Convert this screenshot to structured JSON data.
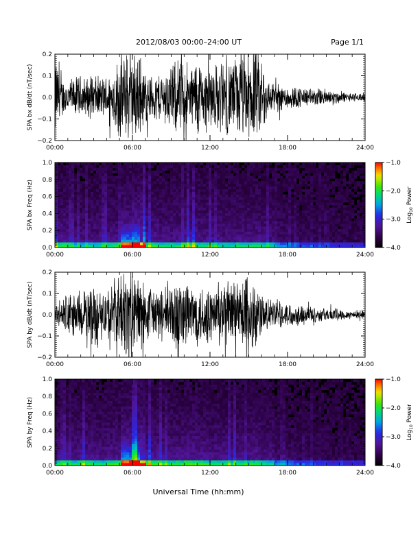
{
  "header": {
    "title": "2012/08/03  00:00–24:00 UT",
    "page": "Page 1/1"
  },
  "chart_data": [
    {
      "type": "line",
      "id": "bx-waveform",
      "ylabel": "SPA bx dB/dt (nT/sec)",
      "xlim": [
        0,
        24
      ],
      "ylim": [
        -0.2,
        0.2
      ],
      "xticks": [
        "00:00",
        "06:00",
        "12:00",
        "18:00",
        "24:00"
      ],
      "yticks": [
        "−0.2",
        "−0.1",
        "0.0",
        "0.1",
        "0.2"
      ],
      "series": [
        {
          "x": [
            0,
            0.5,
            1,
            1.5,
            2,
            2.5,
            3,
            3.5,
            4,
            4.5,
            5,
            5.5,
            6,
            6.5,
            7,
            7.5,
            8,
            8.5,
            9,
            9.5,
            10,
            10.5,
            11,
            11.5,
            12,
            12.5,
            13,
            13.5,
            14,
            14.5,
            15,
            15.5,
            16,
            16.5,
            17,
            17.5,
            18,
            18.5,
            19,
            19.5,
            20,
            20.5,
            21,
            21.5,
            22,
            22.5,
            23,
            23.5,
            24
          ],
          "amplitude": [
            0.2,
            0.09,
            0.08,
            0.09,
            0.1,
            0.09,
            0.1,
            0.09,
            0.1,
            0.12,
            0.2,
            0.2,
            0.2,
            0.2,
            0.12,
            0.1,
            0.11,
            0.12,
            0.16,
            0.16,
            0.2,
            0.13,
            0.2,
            0.14,
            0.17,
            0.15,
            0.17,
            0.17,
            0.18,
            0.2,
            0.2,
            0.2,
            0.2,
            0.08,
            0.07,
            0.06,
            0.06,
            0.05,
            0.05,
            0.04,
            0.04,
            0.04,
            0.04,
            0.03,
            0.03,
            0.02,
            0.02,
            0.02,
            0.02
          ]
        }
      ]
    },
    {
      "type": "heatmap",
      "id": "bx-spectrogram",
      "ylabel": "SPA bx Freq (Hz)",
      "xlim": [
        0,
        24
      ],
      "ylim": [
        0,
        1.0
      ],
      "xticks": [
        "00:00",
        "06:00",
        "12:00",
        "18:00",
        "24:00"
      ],
      "yticks": [
        "0.0",
        "0.2",
        "0.4",
        "0.6",
        "0.8",
        "1.0"
      ],
      "zlim": [
        -4.0,
        -1.0
      ],
      "colorbar_label": "Log",
      "colorbar_sub": "10",
      "colorbar_label_tail": " Power",
      "colorbar_ticks": [
        "−1.0",
        "−2.0",
        "−3.0",
        "−4.0"
      ],
      "hour_activity": [
        0.55,
        0.4,
        0.45,
        0.45,
        0.5,
        0.75,
        0.9,
        0.55,
        0.5,
        0.5,
        0.6,
        0.5,
        0.5,
        0.45,
        0.5,
        0.5,
        0.45,
        0.3,
        0.25,
        0.2,
        0.18,
        0.15,
        0.15,
        0.15
      ]
    },
    {
      "type": "line",
      "id": "by-waveform",
      "ylabel": "SPA by dB/dt (nT/sec)",
      "xlim": [
        0,
        24
      ],
      "ylim": [
        -0.2,
        0.2
      ],
      "xticks": [
        "00:00",
        "06:00",
        "12:00",
        "18:00",
        "24:00"
      ],
      "yticks": [
        "−0.2",
        "−0.1",
        "0.0",
        "0.1",
        "0.2"
      ],
      "series": [
        {
          "x": [
            0,
            0.5,
            1,
            1.5,
            2,
            2.5,
            3,
            3.5,
            4,
            4.5,
            5,
            5.5,
            6,
            6.5,
            7,
            7.5,
            8,
            8.5,
            9,
            9.5,
            10,
            10.5,
            11,
            11.5,
            12,
            12.5,
            13,
            13.5,
            14,
            14.5,
            15,
            15.5,
            16,
            16.5,
            17,
            17.5,
            18,
            18.5,
            19,
            19.5,
            20,
            20.5,
            21,
            21.5,
            22,
            22.5,
            23,
            23.5,
            24
          ],
          "amplitude": [
            0.05,
            0.07,
            0.12,
            0.09,
            0.1,
            0.12,
            0.15,
            0.11,
            0.12,
            0.16,
            0.2,
            0.2,
            0.2,
            0.2,
            0.12,
            0.14,
            0.12,
            0.12,
            0.15,
            0.18,
            0.18,
            0.15,
            0.14,
            0.15,
            0.13,
            0.14,
            0.16,
            0.15,
            0.17,
            0.17,
            0.2,
            0.18,
            0.09,
            0.07,
            0.07,
            0.06,
            0.05,
            0.05,
            0.05,
            0.04,
            0.04,
            0.03,
            0.03,
            0.03,
            0.03,
            0.02,
            0.02,
            0.02,
            0.02
          ]
        }
      ]
    },
    {
      "type": "heatmap",
      "id": "by-spectrogram",
      "ylabel": "SPA by Freq (Hz)",
      "xlim": [
        0,
        24
      ],
      "ylim": [
        0,
        1.0
      ],
      "xticks": [
        "00:00",
        "06:00",
        "12:00",
        "18:00",
        "24:00"
      ],
      "yticks": [
        "0.0",
        "0.2",
        "0.4",
        "0.6",
        "0.8",
        "1.0"
      ],
      "zlim": [
        -4.0,
        -1.0
      ],
      "colorbar_label": "Log",
      "colorbar_sub": "10",
      "colorbar_label_tail": " Power",
      "colorbar_ticks": [
        "−1.0",
        "−2.0",
        "−3.0",
        "−4.0"
      ],
      "hour_activity": [
        0.5,
        0.5,
        0.55,
        0.5,
        0.55,
        0.8,
        0.95,
        0.6,
        0.55,
        0.55,
        0.6,
        0.55,
        0.5,
        0.5,
        0.5,
        0.55,
        0.45,
        0.3,
        0.25,
        0.2,
        0.18,
        0.15,
        0.15,
        0.15
      ]
    }
  ],
  "xaxis": {
    "label": "Universal Time (hh:mm)"
  }
}
